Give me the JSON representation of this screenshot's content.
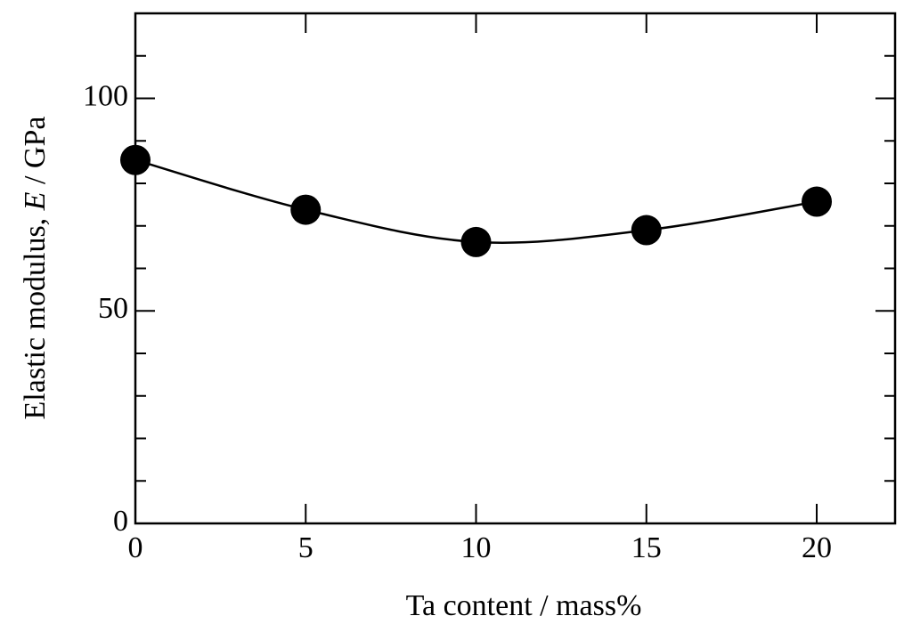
{
  "chart_data": {
    "type": "line",
    "xlabel": "Ta content / mass%",
    "ylabel": [
      "Elastic modulus, ",
      "E",
      " / GPa"
    ],
    "x": [
      0,
      5,
      10,
      15,
      20
    ],
    "series": [
      {
        "color": "#000000",
        "values": [
          85.5,
          73.8,
          66.2,
          69,
          75.7
        ]
      }
    ],
    "xlim": [
      0,
      22.3
    ],
    "xticks": [
      0,
      5,
      10,
      15,
      20
    ],
    "ylim": [
      0,
      120
    ],
    "yticks": [
      0,
      50,
      100
    ],
    "yminor": [
      10,
      20,
      30,
      40,
      60,
      70,
      80,
      90,
      110
    ]
  }
}
